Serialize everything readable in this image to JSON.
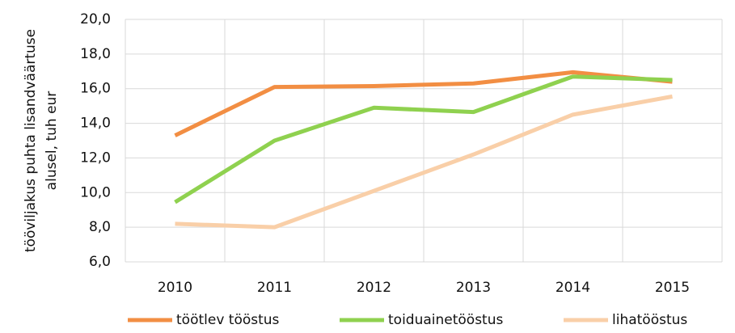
{
  "chart_data": {
    "type": "line",
    "ylabel": [
      "tööviljakus puhta lisandväärtuse",
      "alusel, tuh eur"
    ],
    "categories": [
      "2010",
      "2011",
      "2012",
      "2013",
      "2014",
      "2015"
    ],
    "series": [
      {
        "name": "töötlev tööstus",
        "color": "#f28e43",
        "values": [
          13.3,
          16.1,
          16.15,
          16.3,
          16.95,
          16.4
        ]
      },
      {
        "name": "toiduainetööstus",
        "color": "#8fd14f",
        "values": [
          9.45,
          13.0,
          14.9,
          14.65,
          16.7,
          16.5
        ]
      },
      {
        "name": "lihatööstus",
        "color": "#f9cfa8",
        "values": [
          8.2,
          8.0,
          10.1,
          12.2,
          14.5,
          15.55
        ]
      }
    ],
    "ylim": [
      6,
      20
    ],
    "yticks": [
      {
        "value": 6,
        "label": "6,0"
      },
      {
        "value": 8,
        "label": "8,0"
      },
      {
        "value": 10,
        "label": "10,0"
      },
      {
        "value": 12,
        "label": "12,0"
      },
      {
        "value": 14,
        "label": "14,0"
      },
      {
        "value": 16,
        "label": "16,0"
      },
      {
        "value": 18,
        "label": "18,0"
      },
      {
        "value": 20,
        "label": "20,0"
      }
    ],
    "grid": true,
    "legend": "bottom"
  }
}
